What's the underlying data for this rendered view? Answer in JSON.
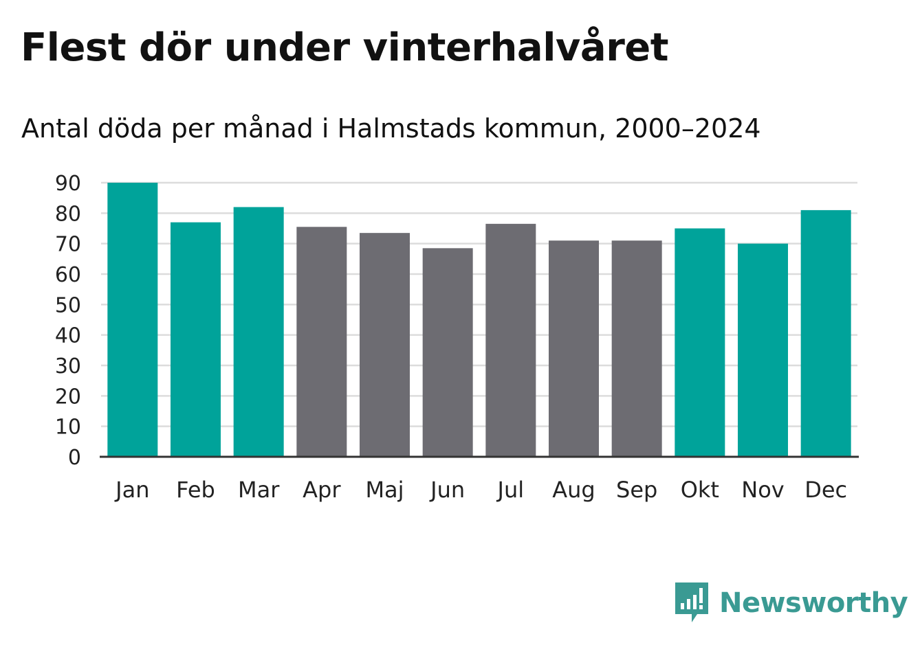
{
  "title": "Flest dör under vinterhalvåret",
  "subtitle": "Antal döda per månad i Halmstads kommun, 2000–2024",
  "brand": {
    "name": "Newsworthy",
    "color": "#3a9a93"
  },
  "colors": {
    "winter": "#00a39a",
    "summer": "#6d6c72",
    "grid": "#dcdcdc",
    "axis": "#333333"
  },
  "chart_data": {
    "type": "bar",
    "title": "Flest dör under vinterhalvåret",
    "subtitle": "Antal döda per månad i Halmstads kommun, 2000–2024",
    "xlabel": "",
    "ylabel": "",
    "ylim": [
      0,
      90
    ],
    "yticks": [
      0,
      10,
      20,
      30,
      40,
      50,
      60,
      70,
      80,
      90
    ],
    "grid": true,
    "categories": [
      "Jan",
      "Feb",
      "Mar",
      "Apr",
      "Maj",
      "Jun",
      "Jul",
      "Aug",
      "Sep",
      "Okt",
      "Nov",
      "Dec"
    ],
    "values": [
      90,
      77,
      82,
      75.5,
      73.5,
      68.5,
      76.5,
      71,
      71,
      75,
      70,
      81
    ],
    "groups": [
      "winter",
      "winter",
      "winter",
      "summer",
      "summer",
      "summer",
      "summer",
      "summer",
      "summer",
      "winter",
      "winter",
      "winter"
    ]
  }
}
